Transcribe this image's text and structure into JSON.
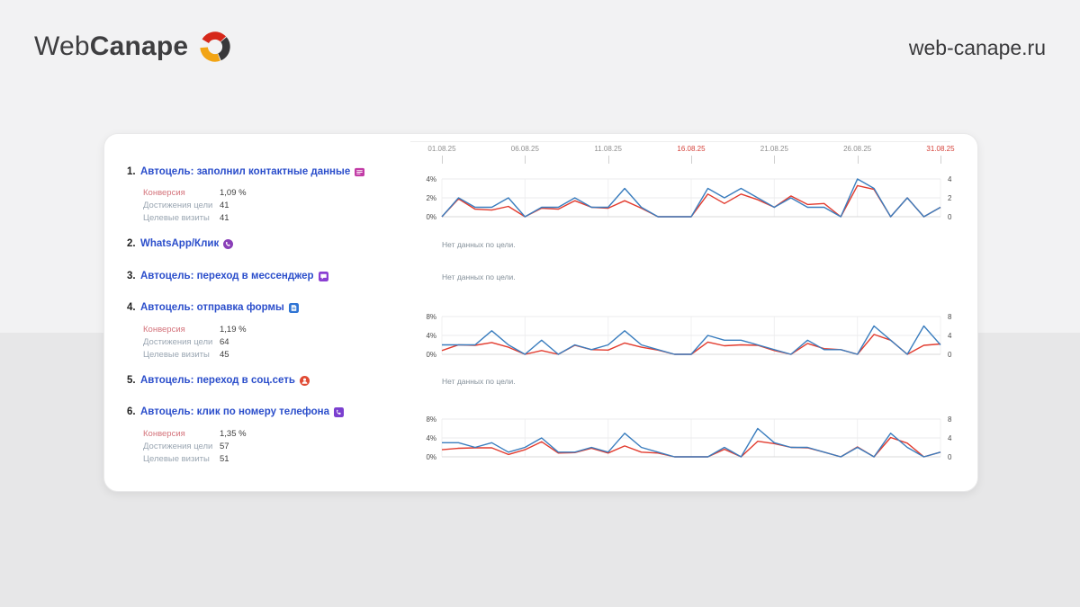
{
  "header": {
    "logo_web": "Web",
    "logo_canape": "Canape",
    "site": "web-canape.ru",
    "logo_colors": {
      "red": "#d6281a",
      "dark": "#38383a",
      "orange": "#f2a414"
    }
  },
  "colors": {
    "conversion_line": "#e23b2e",
    "reaches_line": "#3a7dbe",
    "goal_title_blue": "#2b4ecb",
    "conversion_label_red": "#d4737b",
    "metric_label_gray": "#9aa6b2",
    "date_red": "#d5423a",
    "date_gray": "#8f8f8f",
    "card_bg": "#ffffff",
    "bg_top": "#f2f2f3",
    "bg_bottom": "#e7e7e8"
  },
  "date_axis": {
    "ticks": [
      {
        "label": "01.08.25",
        "day": 1,
        "red": false
      },
      {
        "label": "06.08.25",
        "day": 6,
        "red": false
      },
      {
        "label": "11.08.25",
        "day": 11,
        "red": false
      },
      {
        "label": "16.08.25",
        "day": 16,
        "red": true
      },
      {
        "label": "21.08.25",
        "day": 21,
        "red": false
      },
      {
        "label": "26.08.25",
        "day": 26,
        "red": false
      },
      {
        "label": "31.08.25",
        "day": 31,
        "red": true
      }
    ]
  },
  "goals": [
    {
      "num": "1.",
      "title": "Автоцель: заполнил контактные данные",
      "icon": "contact-form-icon",
      "icon_color": "#c23ca6",
      "metrics": [
        {
          "label": "Конверсия",
          "value": "1,09 %"
        },
        {
          "label": "Достижения цели",
          "value": "41"
        },
        {
          "label": "Целевые визиты",
          "value": "41"
        }
      ]
    },
    {
      "num": "2.",
      "title": "WhatsApp/Клик",
      "icon": "whatsapp-icon",
      "icon_color": "#8a3fb8",
      "no_data": "Нет данных по цели."
    },
    {
      "num": "3.",
      "title": "Автоцель: переход в мессенджер",
      "icon": "messenger-icon",
      "icon_color": "#8a3fd2",
      "no_data": "Нет данных по цели."
    },
    {
      "num": "4.",
      "title": "Автоцель: отправка формы",
      "icon": "form-send-icon",
      "icon_color": "#2f74d4",
      "metrics": [
        {
          "label": "Конверсия",
          "value": "1,19 %"
        },
        {
          "label": "Достижения цели",
          "value": "64"
        },
        {
          "label": "Целевые визиты",
          "value": "45"
        }
      ]
    },
    {
      "num": "5.",
      "title": "Автоцель: переход в соц.сеть",
      "icon": "social-network-icon",
      "icon_color": "#e04a33",
      "no_data": "Нет данных по цели."
    },
    {
      "num": "6.",
      "title": "Автоцель: клик по номеру телефона",
      "icon": "phone-click-icon",
      "icon_color": "#7b40cf",
      "metrics": [
        {
          "label": "Конверсия",
          "value": "1,35 %"
        },
        {
          "label": "Достижения цели",
          "value": "57"
        },
        {
          "label": "Целевые визиты",
          "value": "51"
        }
      ]
    }
  ],
  "chart_data": [
    {
      "type": "line",
      "goal_index": 0,
      "title": "Автоцель: заполнил контактные данные",
      "x_range": [
        "01.08.25",
        "31.08.25"
      ],
      "x_points": 31,
      "x_tick_labels": [
        "01.08.25",
        "06.08.25",
        "11.08.25",
        "16.08.25",
        "21.08.25",
        "26.08.25",
        "31.08.25"
      ],
      "x_tick_days": [
        1,
        6,
        11,
        16,
        21,
        26,
        31
      ],
      "y_max": 4,
      "y_ticks": [
        {
          "value": 0,
          "left": "0%",
          "right": "0"
        },
        {
          "value": 2,
          "left": "2%",
          "right": "2"
        },
        {
          "value": 4,
          "left": "4%",
          "right": "4"
        }
      ],
      "grid": true,
      "legend_position": "none",
      "series": [
        {
          "name": "Конверсия, %",
          "color": "#e23b2e",
          "axis": "left",
          "values": [
            0,
            1.9,
            0.8,
            0.7,
            1.1,
            0,
            0.9,
            0.8,
            1.7,
            1,
            0.9,
            1.7,
            0.9,
            0,
            0,
            0,
            2.4,
            1.4,
            2.4,
            1.8,
            1,
            2.2,
            1.3,
            1.4,
            0,
            3.3,
            2.9,
            0,
            2,
            0,
            1
          ]
        },
        {
          "name": "Достижения цели",
          "color": "#3a7dbe",
          "axis": "right",
          "values": [
            0,
            2,
            1,
            1,
            2,
            0,
            1,
            1,
            2,
            1,
            1,
            3,
            1,
            0,
            0,
            0,
            3,
            2,
            3,
            2,
            1,
            2,
            1,
            1,
            0,
            4,
            3,
            0,
            2,
            0,
            1
          ]
        }
      ]
    },
    {
      "type": "line",
      "goal_index": 3,
      "title": "Автоцель: отправка формы",
      "x_range": [
        "01.08.25",
        "31.08.25"
      ],
      "x_points": 31,
      "x_tick_labels": [
        "01.08.25",
        "06.08.25",
        "11.08.25",
        "16.08.25",
        "21.08.25",
        "26.08.25",
        "31.08.25"
      ],
      "x_tick_days": [
        1,
        6,
        11,
        16,
        21,
        26,
        31
      ],
      "y_max": 8,
      "y_ticks": [
        {
          "value": 0,
          "left": "0%",
          "right": "0"
        },
        {
          "value": 4,
          "left": "4%",
          "right": "4"
        },
        {
          "value": 8,
          "left": "8%",
          "right": "8"
        }
      ],
      "grid": true,
      "legend_position": "none",
      "series": [
        {
          "name": "Конверсия, %",
          "color": "#e23b2e",
          "axis": "left",
          "values": [
            0.8,
            2,
            1.9,
            2.5,
            1.5,
            0,
            0.8,
            0,
            1.9,
            1,
            0.9,
            2.4,
            1.5,
            0.9,
            0,
            0,
            2.6,
            1.8,
            2,
            1.9,
            0.8,
            0,
            2.3,
            1.2,
            1,
            0,
            4.2,
            3,
            0,
            1.9,
            2.2
          ]
        },
        {
          "name": "Достижения цели",
          "color": "#3a7dbe",
          "axis": "right",
          "values": [
            2,
            2,
            2,
            5,
            2,
            0,
            3,
            0,
            2,
            1,
            2,
            5,
            2,
            1,
            0,
            0,
            4,
            3,
            3,
            2,
            1,
            0,
            3,
            1,
            1,
            0,
            6,
            3,
            0,
            6,
            2
          ]
        }
      ]
    },
    {
      "type": "line",
      "goal_index": 5,
      "title": "Автоцель: клик по номеру телефона",
      "x_range": [
        "01.08.25",
        "31.08.25"
      ],
      "x_points": 31,
      "x_tick_labels": [
        "01.08.25",
        "06.08.25",
        "11.08.25",
        "16.08.25",
        "21.08.25",
        "26.08.25",
        "31.08.25"
      ],
      "x_tick_days": [
        1,
        6,
        11,
        16,
        21,
        26,
        31
      ],
      "y_max": 8,
      "y_ticks": [
        {
          "value": 0,
          "left": "0%",
          "right": "0"
        },
        {
          "value": 4,
          "left": "4%",
          "right": "4"
        },
        {
          "value": 8,
          "left": "8%",
          "right": "8"
        }
      ],
      "grid": true,
      "legend_position": "none",
      "series": [
        {
          "name": "Конверсия, %",
          "color": "#e23b2e",
          "axis": "left",
          "values": [
            1.5,
            1.8,
            1.9,
            1.9,
            0.5,
            1.5,
            3.2,
            0.8,
            0.9,
            1.8,
            0.8,
            2.3,
            1,
            0.8,
            0,
            0,
            0,
            1.6,
            0,
            3.3,
            2.8,
            2,
            1.9,
            1,
            0,
            2.1,
            0,
            4.1,
            2.9,
            0,
            1
          ]
        },
        {
          "name": "Достижения цели",
          "color": "#3a7dbe",
          "axis": "right",
          "values": [
            3,
            3,
            2,
            3,
            1,
            2,
            4,
            1,
            1,
            2,
            1,
            5,
            2,
            1,
            0,
            0,
            0,
            2,
            0,
            6,
            3,
            2,
            2,
            1,
            0,
            2,
            0,
            5,
            2,
            0,
            1
          ]
        }
      ]
    }
  ]
}
